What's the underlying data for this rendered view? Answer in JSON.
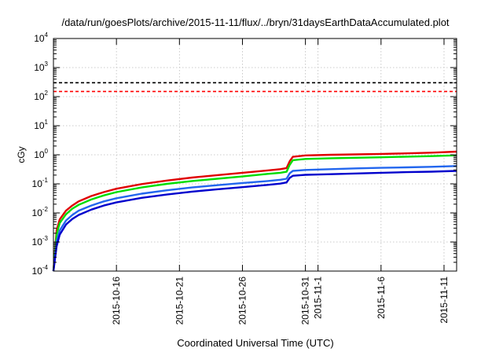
{
  "chart_data": {
    "type": "line",
    "title": "/data/run/goesPlots/archive/2015-11-11/flux/../bryn/31daysEarthDataAccumulated.plot",
    "xlabel": "Coordinated Universal Time (UTC)",
    "ylabel": "cGy",
    "xlim": [
      "2015-10-11",
      "2015-11-12"
    ],
    "ylim": [
      0.0001,
      10000
    ],
    "y_scale": "log",
    "grid": true,
    "x_tick_labels": [
      "2015-10-16",
      "2015-10-21",
      "2015-10-26",
      "2015-10-31",
      "2015-11-1",
      "2015-11-6",
      "2015-11-11"
    ],
    "x_tick_values": [
      "2015-10-16",
      "2015-10-21",
      "2015-10-26",
      "2015-10-31",
      "2015-11-01",
      "2015-11-06",
      "2015-11-11"
    ],
    "y_tick_labels": [
      {
        "base": "10",
        "exp": "-4",
        "value": 0.0001
      },
      {
        "base": "10",
        "exp": "-3",
        "value": 0.001
      },
      {
        "base": "10",
        "exp": "-2",
        "value": 0.01
      },
      {
        "base": "10",
        "exp": "-1",
        "value": 0.1
      },
      {
        "base": "10",
        "exp": "0",
        "value": 1
      },
      {
        "base": "10",
        "exp": "1",
        "value": 10
      },
      {
        "base": "10",
        "exp": "2",
        "value": 100
      },
      {
        "base": "10",
        "exp": "3",
        "value": 1000
      },
      {
        "base": "10",
        "exp": "4",
        "value": 10000
      }
    ],
    "reference_lines": [
      {
        "color": "#000000",
        "style": "dashed",
        "value": 300
      },
      {
        "color": "#ff0000",
        "style": "dashed",
        "value": 150
      }
    ],
    "series": [
      {
        "color": "#e00000",
        "x": [
          "2015-10-11",
          "2015-10-11 06:00",
          "2015-10-11 12:00",
          "2015-10-12",
          "2015-10-12 12:00",
          "2015-10-13",
          "2015-10-14",
          "2015-10-15",
          "2015-10-16",
          "2015-10-18",
          "2015-10-20",
          "2015-10-22",
          "2015-10-24",
          "2015-10-26",
          "2015-10-28",
          "2015-10-29",
          "2015-10-29 12:00",
          "2015-10-29 18:00",
          "2015-10-30",
          "2015-10-31",
          "2015-11-02",
          "2015-11-04",
          "2015-11-06",
          "2015-11-08",
          "2015-11-10",
          "2015-11-12"
        ],
        "values": [
          0.0001,
          0.0025,
          0.006,
          0.012,
          0.018,
          0.025,
          0.038,
          0.052,
          0.068,
          0.098,
          0.13,
          0.165,
          0.2,
          0.24,
          0.29,
          0.32,
          0.35,
          0.6,
          0.85,
          0.95,
          1.0,
          1.03,
          1.07,
          1.12,
          1.18,
          1.28
        ]
      },
      {
        "color": "#00dd00",
        "x": [
          "2015-10-11",
          "2015-10-11 06:00",
          "2015-10-11 12:00",
          "2015-10-12",
          "2015-10-12 12:00",
          "2015-10-13",
          "2015-10-14",
          "2015-10-15",
          "2015-10-16",
          "2015-10-18",
          "2015-10-20",
          "2015-10-22",
          "2015-10-24",
          "2015-10-26",
          "2015-10-28",
          "2015-10-29",
          "2015-10-29 12:00",
          "2015-10-29 18:00",
          "2015-10-30",
          "2015-10-31",
          "2015-11-02",
          "2015-11-04",
          "2015-11-06",
          "2015-11-08",
          "2015-11-10",
          "2015-11-12"
        ],
        "values": [
          0.0001,
          0.0018,
          0.0045,
          0.009,
          0.014,
          0.019,
          0.029,
          0.04,
          0.052,
          0.075,
          0.1,
          0.125,
          0.15,
          0.18,
          0.22,
          0.24,
          0.26,
          0.45,
          0.65,
          0.72,
          0.76,
          0.79,
          0.82,
          0.86,
          0.9,
          0.96
        ]
      },
      {
        "color": "#2266ee",
        "x": [
          "2015-10-11",
          "2015-10-11 06:00",
          "2015-10-11 12:00",
          "2015-10-12",
          "2015-10-12 12:00",
          "2015-10-13",
          "2015-10-14",
          "2015-10-15",
          "2015-10-16",
          "2015-10-18",
          "2015-10-20",
          "2015-10-22",
          "2015-10-24",
          "2015-10-26",
          "2015-10-28",
          "2015-10-29",
          "2015-10-29 12:00",
          "2015-10-29 18:00",
          "2015-10-30",
          "2015-10-31",
          "2015-11-02",
          "2015-11-04",
          "2015-11-06",
          "2015-11-08",
          "2015-11-10",
          "2015-11-12"
        ],
        "values": [
          0.0001,
          0.001,
          0.0025,
          0.0055,
          0.0085,
          0.012,
          0.018,
          0.025,
          0.032,
          0.046,
          0.06,
          0.075,
          0.09,
          0.107,
          0.125,
          0.138,
          0.15,
          0.23,
          0.28,
          0.3,
          0.32,
          0.34,
          0.355,
          0.37,
          0.385,
          0.41
        ]
      },
      {
        "color": "#0000cc",
        "x": [
          "2015-10-11",
          "2015-10-11 06:00",
          "2015-10-11 12:00",
          "2015-10-12",
          "2015-10-12 12:00",
          "2015-10-13",
          "2015-10-14",
          "2015-10-15",
          "2015-10-16",
          "2015-10-18",
          "2015-10-20",
          "2015-10-22",
          "2015-10-24",
          "2015-10-26",
          "2015-10-28",
          "2015-10-29",
          "2015-10-29 12:00",
          "2015-10-29 18:00",
          "2015-10-30",
          "2015-10-31",
          "2015-11-02",
          "2015-11-04",
          "2015-11-06",
          "2015-11-08",
          "2015-11-10",
          "2015-11-12"
        ],
        "values": [
          0.0001,
          0.0007,
          0.0018,
          0.004,
          0.0062,
          0.0085,
          0.013,
          0.018,
          0.023,
          0.033,
          0.043,
          0.054,
          0.065,
          0.077,
          0.092,
          0.102,
          0.112,
          0.16,
          0.19,
          0.205,
          0.215,
          0.228,
          0.24,
          0.252,
          0.263,
          0.28
        ]
      }
    ]
  }
}
